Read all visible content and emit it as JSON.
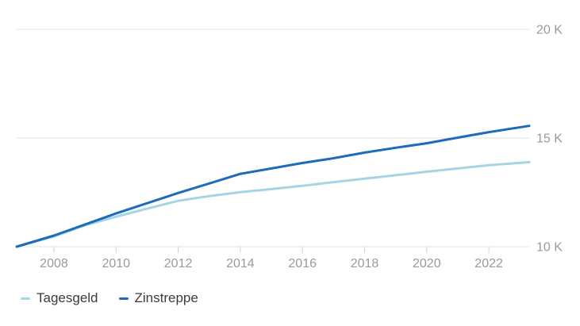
{
  "chart_data": {
    "type": "line",
    "title": "",
    "xlabel": "",
    "ylabel": "",
    "x": [
      2006.8,
      2008,
      2009,
      2010,
      2011,
      2012,
      2013,
      2014,
      2015,
      2016,
      2017,
      2018,
      2019,
      2020,
      2021,
      2022,
      2023.3
    ],
    "series": [
      {
        "name": "Tagesgeld",
        "color": "#a5d5e5",
        "values": [
          10000,
          10470,
          10980,
          11380,
          11750,
          12110,
          12330,
          12510,
          12650,
          12800,
          12970,
          13130,
          13290,
          13450,
          13600,
          13750,
          13890
        ]
      },
      {
        "name": "Zinstreppe",
        "color": "#1d6bbc",
        "values": [
          10000,
          10510,
          11020,
          11530,
          12000,
          12470,
          12910,
          13350,
          13600,
          13850,
          14070,
          14330,
          14550,
          14760,
          15020,
          15270,
          15560
        ]
      }
    ],
    "x_ticks": [
      {
        "value": 2008,
        "label": "2008"
      },
      {
        "value": 2010,
        "label": "2010"
      },
      {
        "value": 2012,
        "label": "2012"
      },
      {
        "value": 2014,
        "label": "2014"
      },
      {
        "value": 2016,
        "label": "2016"
      },
      {
        "value": 2018,
        "label": "2018"
      },
      {
        "value": 2020,
        "label": "2020"
      },
      {
        "value": 2022,
        "label": "2022"
      }
    ],
    "y_ticks": [
      {
        "value": 10000,
        "label": "10 K"
      },
      {
        "value": 15000,
        "label": "15 K"
      },
      {
        "value": 20000,
        "label": "20 K"
      }
    ],
    "xlim": [
      2006.8,
      2023.3
    ],
    "ylim": [
      10000,
      20000
    ],
    "grid": "horizontal-only",
    "legend_position": "bottom-left",
    "colors": {
      "background": "#ffffff",
      "grid": "#e2e2e2",
      "tick": "#d2d2d2",
      "axis_text": "#9a9a9a",
      "legend_text": "#3c3c3c"
    }
  }
}
